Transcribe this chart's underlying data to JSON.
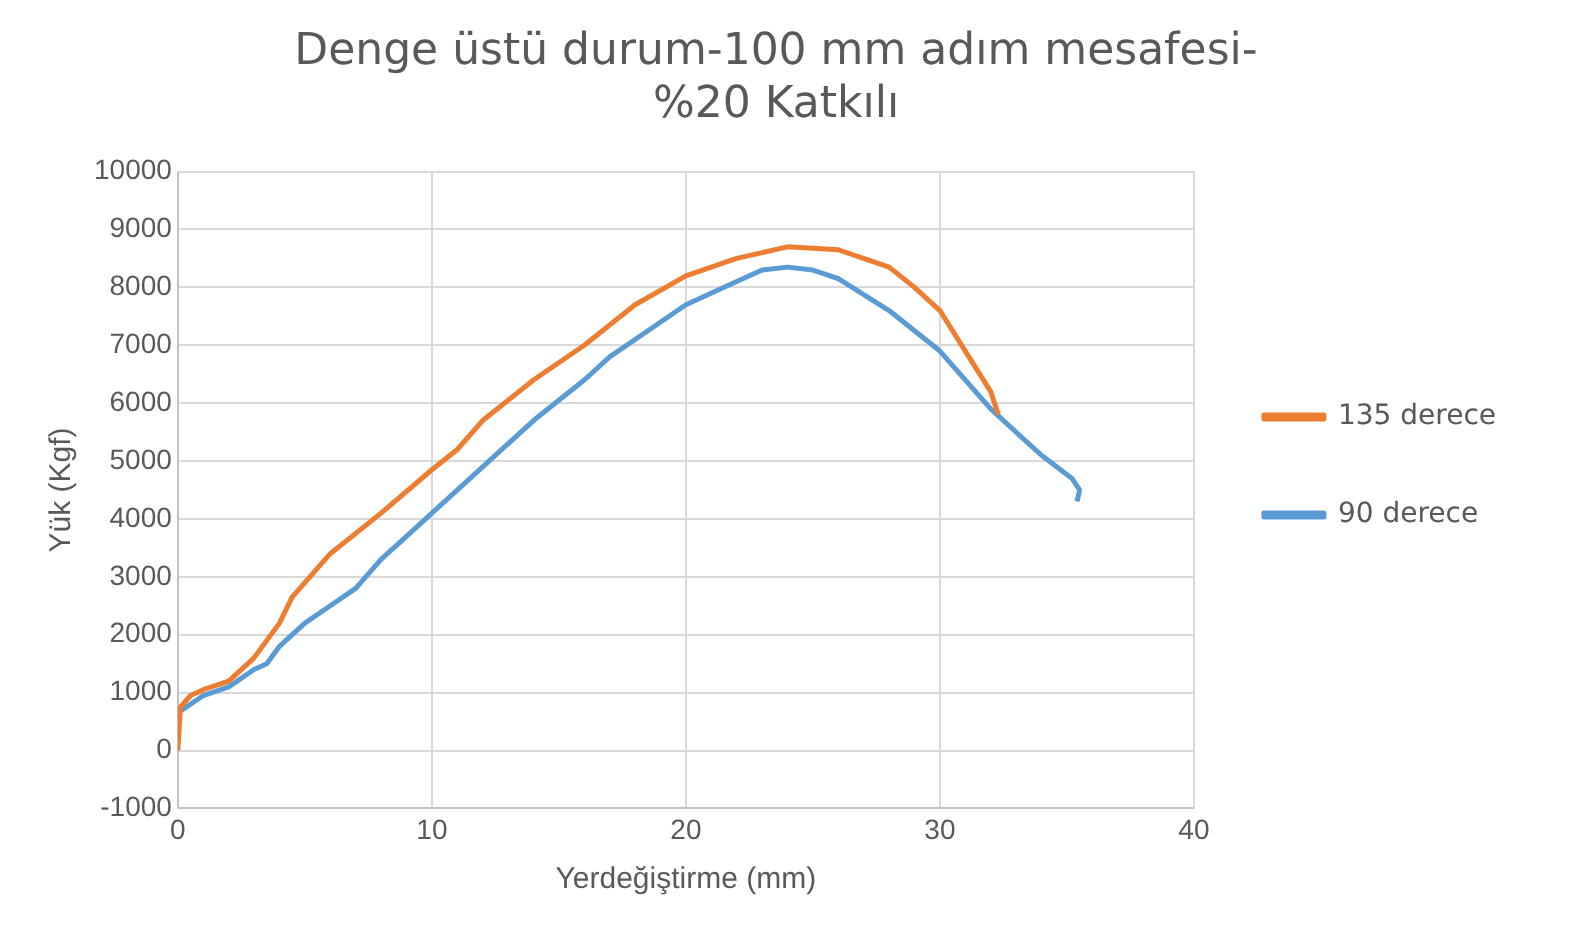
{
  "chart_data": {
    "type": "line",
    "title": "Denge üstü durum-100 mm adım mesafesi-%20 Katkılı",
    "xlabel": "Yerdeğiştirme (mm)",
    "ylabel": "Yük (Kgf)",
    "xlim": [
      0,
      40
    ],
    "xticks": [
      0,
      10,
      20,
      30,
      40
    ],
    "ylim": [
      -1000,
      10000
    ],
    "yticks": [
      -1000,
      0,
      1000,
      2000,
      3000,
      4000,
      5000,
      6000,
      7000,
      8000,
      9000,
      10000
    ],
    "grid": true,
    "legend": "right",
    "marker": "none",
    "series": [
      {
        "name": "90 derece",
        "color": "#5b9bd5",
        "x": [
          0,
          1,
          2,
          3,
          3.5,
          4,
          5,
          6,
          7,
          8,
          9,
          10,
          12,
          14,
          16,
          17,
          18,
          20,
          22,
          23,
          24,
          25,
          26,
          28,
          30,
          32,
          34,
          35.2,
          35.5,
          35.4
        ],
        "values": [
          650,
          950,
          1100,
          1400,
          1500,
          1800,
          2200,
          2500,
          2800,
          3300,
          3700,
          4100,
          4900,
          5700,
          6400,
          6800,
          7100,
          7700,
          8100,
          8300,
          8350,
          8300,
          8150,
          7600,
          6900,
          5900,
          5100,
          4700,
          4500,
          4300
        ]
      },
      {
        "name": "135 derece",
        "color": "#ed7d31",
        "x": [
          0,
          0.1,
          0.5,
          1,
          2,
          3,
          4,
          4.5,
          5,
          6,
          8,
          10,
          11,
          12,
          14,
          16,
          18,
          20,
          22,
          24,
          26,
          28,
          29,
          30,
          31,
          32,
          32.3
        ],
        "values": [
          0,
          750,
          950,
          1050,
          1200,
          1600,
          2200,
          2650,
          2900,
          3400,
          4100,
          4850,
          5200,
          5700,
          6400,
          7000,
          7700,
          8200,
          8500,
          8700,
          8650,
          8350,
          8000,
          7600,
          6900,
          6200,
          5800
        ]
      }
    ]
  }
}
